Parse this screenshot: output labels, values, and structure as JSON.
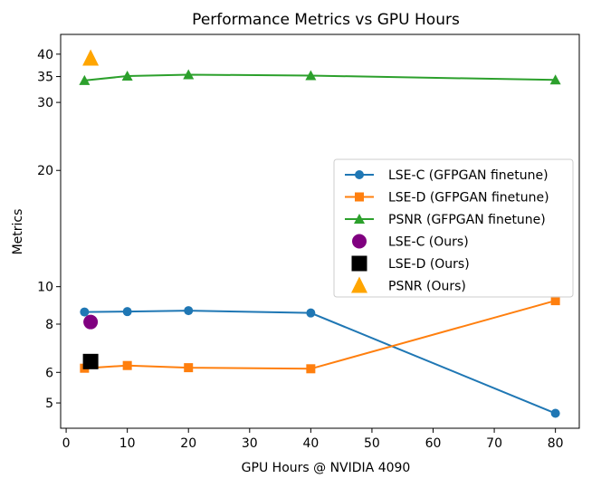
{
  "chart_data": {
    "type": "line",
    "title": "Performance Metrics vs GPU Hours",
    "xlabel": "GPU Hours @ NVIDIA 4090",
    "ylabel": "Metrics",
    "xlim": [
      -0.9,
      83.9
    ],
    "ylim": [
      4.3,
      45
    ],
    "yscale": "log",
    "x_ticks": [
      0,
      10,
      20,
      30,
      40,
      50,
      60,
      70,
      80
    ],
    "y_ticks": [
      5,
      6,
      8,
      10,
      20,
      30,
      35,
      40
    ],
    "grid": false,
    "legend_position": "center-right",
    "series": [
      {
        "name": "LSE-C (GFPGAN finetune)",
        "color": "#1f77b4",
        "marker": "circle",
        "style": "line",
        "x": [
          3,
          10,
          20,
          40,
          80
        ],
        "y": [
          8.6,
          8.62,
          8.67,
          8.55,
          4.7
        ]
      },
      {
        "name": "LSE-D (GFPGAN finetune)",
        "color": "#ff7f0e",
        "marker": "square",
        "style": "line",
        "x": [
          3,
          10,
          20,
          40,
          80
        ],
        "y": [
          6.15,
          6.25,
          6.17,
          6.13,
          9.2
        ]
      },
      {
        "name": "PSNR (GFPGAN finetune)",
        "color": "#2ca02c",
        "marker": "triangle",
        "style": "line",
        "x": [
          3,
          10,
          20,
          40,
          80
        ],
        "y": [
          34.2,
          35.1,
          35.4,
          35.2,
          34.3
        ]
      },
      {
        "name": "LSE-C (Ours)",
        "color": "#800080",
        "marker": "circle-large",
        "style": "point",
        "x": [
          4
        ],
        "y": [
          8.1
        ]
      },
      {
        "name": "LSE-D (Ours)",
        "color": "#000000",
        "marker": "square-large",
        "style": "point",
        "x": [
          4
        ],
        "y": [
          6.4
        ]
      },
      {
        "name": "PSNR (Ours)",
        "color": "#ffa500",
        "marker": "triangle-large",
        "style": "point",
        "x": [
          4
        ],
        "y": [
          39
        ]
      }
    ]
  }
}
